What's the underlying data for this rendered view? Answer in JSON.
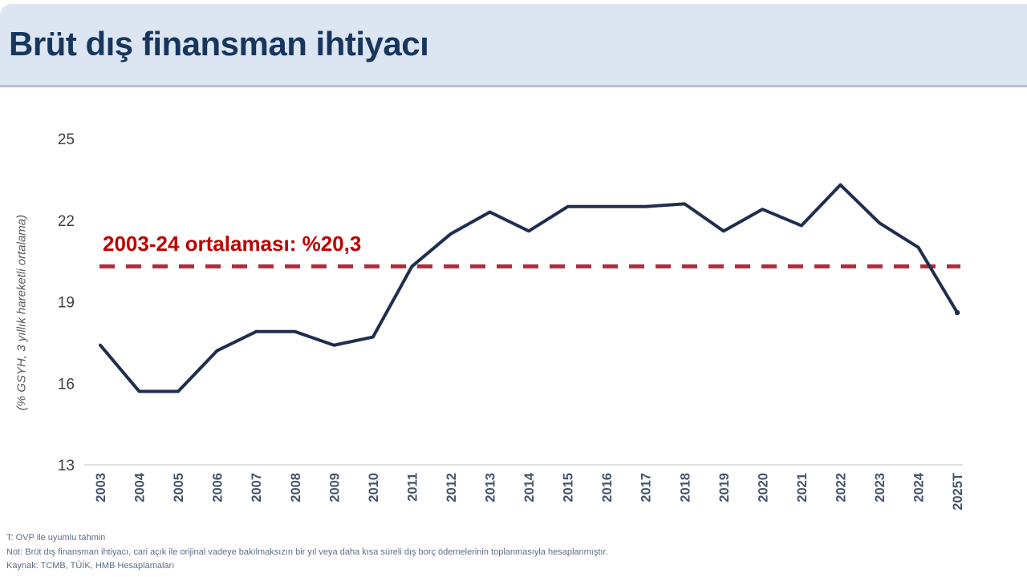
{
  "header": {
    "title": "Brüt dış finansman ihtiyacı"
  },
  "chart_data": {
    "type": "line",
    "title": "Brüt dış finansman ihtiyacı",
    "y_axis_title": "(% GSYH, 3 yıllık hareketli ortalama)",
    "categories": [
      "2003",
      "2004",
      "2005",
      "2006",
      "2007",
      "2008",
      "2009",
      "2010",
      "2011",
      "2012",
      "2013",
      "2014",
      "2015",
      "2016",
      "2017",
      "2018",
      "2019",
      "2020",
      "2021",
      "2022",
      "2023",
      "2024",
      "2025T"
    ],
    "series": [
      {
        "name": "Brüt dış finansman ihtiyacı",
        "color": "#1f2e4e",
        "values": [
          17.4,
          15.7,
          15.7,
          17.2,
          17.9,
          17.9,
          17.4,
          17.7,
          20.3,
          21.5,
          22.3,
          21.6,
          22.5,
          22.5,
          22.5,
          22.6,
          21.6,
          22.4,
          21.8,
          23.3,
          21.9,
          21.0,
          18.6
        ]
      }
    ],
    "average_line": {
      "value": 20.3,
      "label": "2003-24 ortalaması: %20,3",
      "label_color": "#c00000",
      "line_color": "#b02b3c",
      "style": "dashed"
    },
    "ylim": [
      13,
      25
    ],
    "yticks": [
      25,
      22,
      19,
      16,
      13
    ],
    "grid": false,
    "legend_position": "none"
  },
  "footnotes": {
    "estimate_note": "T: OVP ile uyumlu tahmin",
    "definition_note": "Not: Brüt dış finansman ihtiyacı, cari açık ile orijinal vadeye bakılmaksızın bir yıl veya daha kısa süreli dış borç ödemelerinin toplanmasıyla hesaplanmıştır.",
    "source_note": "Kaynak: TCMB, TÜİK, HMB Hesaplamaları"
  },
  "colors": {
    "header_bg": "#dce6f2",
    "header_border": "#b3c0d4",
    "title_text": "#17365d",
    "axis_line": "#d9d9d9",
    "y_tick_text": "#3f3f3f",
    "x_tick_text": "#44546a",
    "footnote_text": "#5d6d88"
  }
}
